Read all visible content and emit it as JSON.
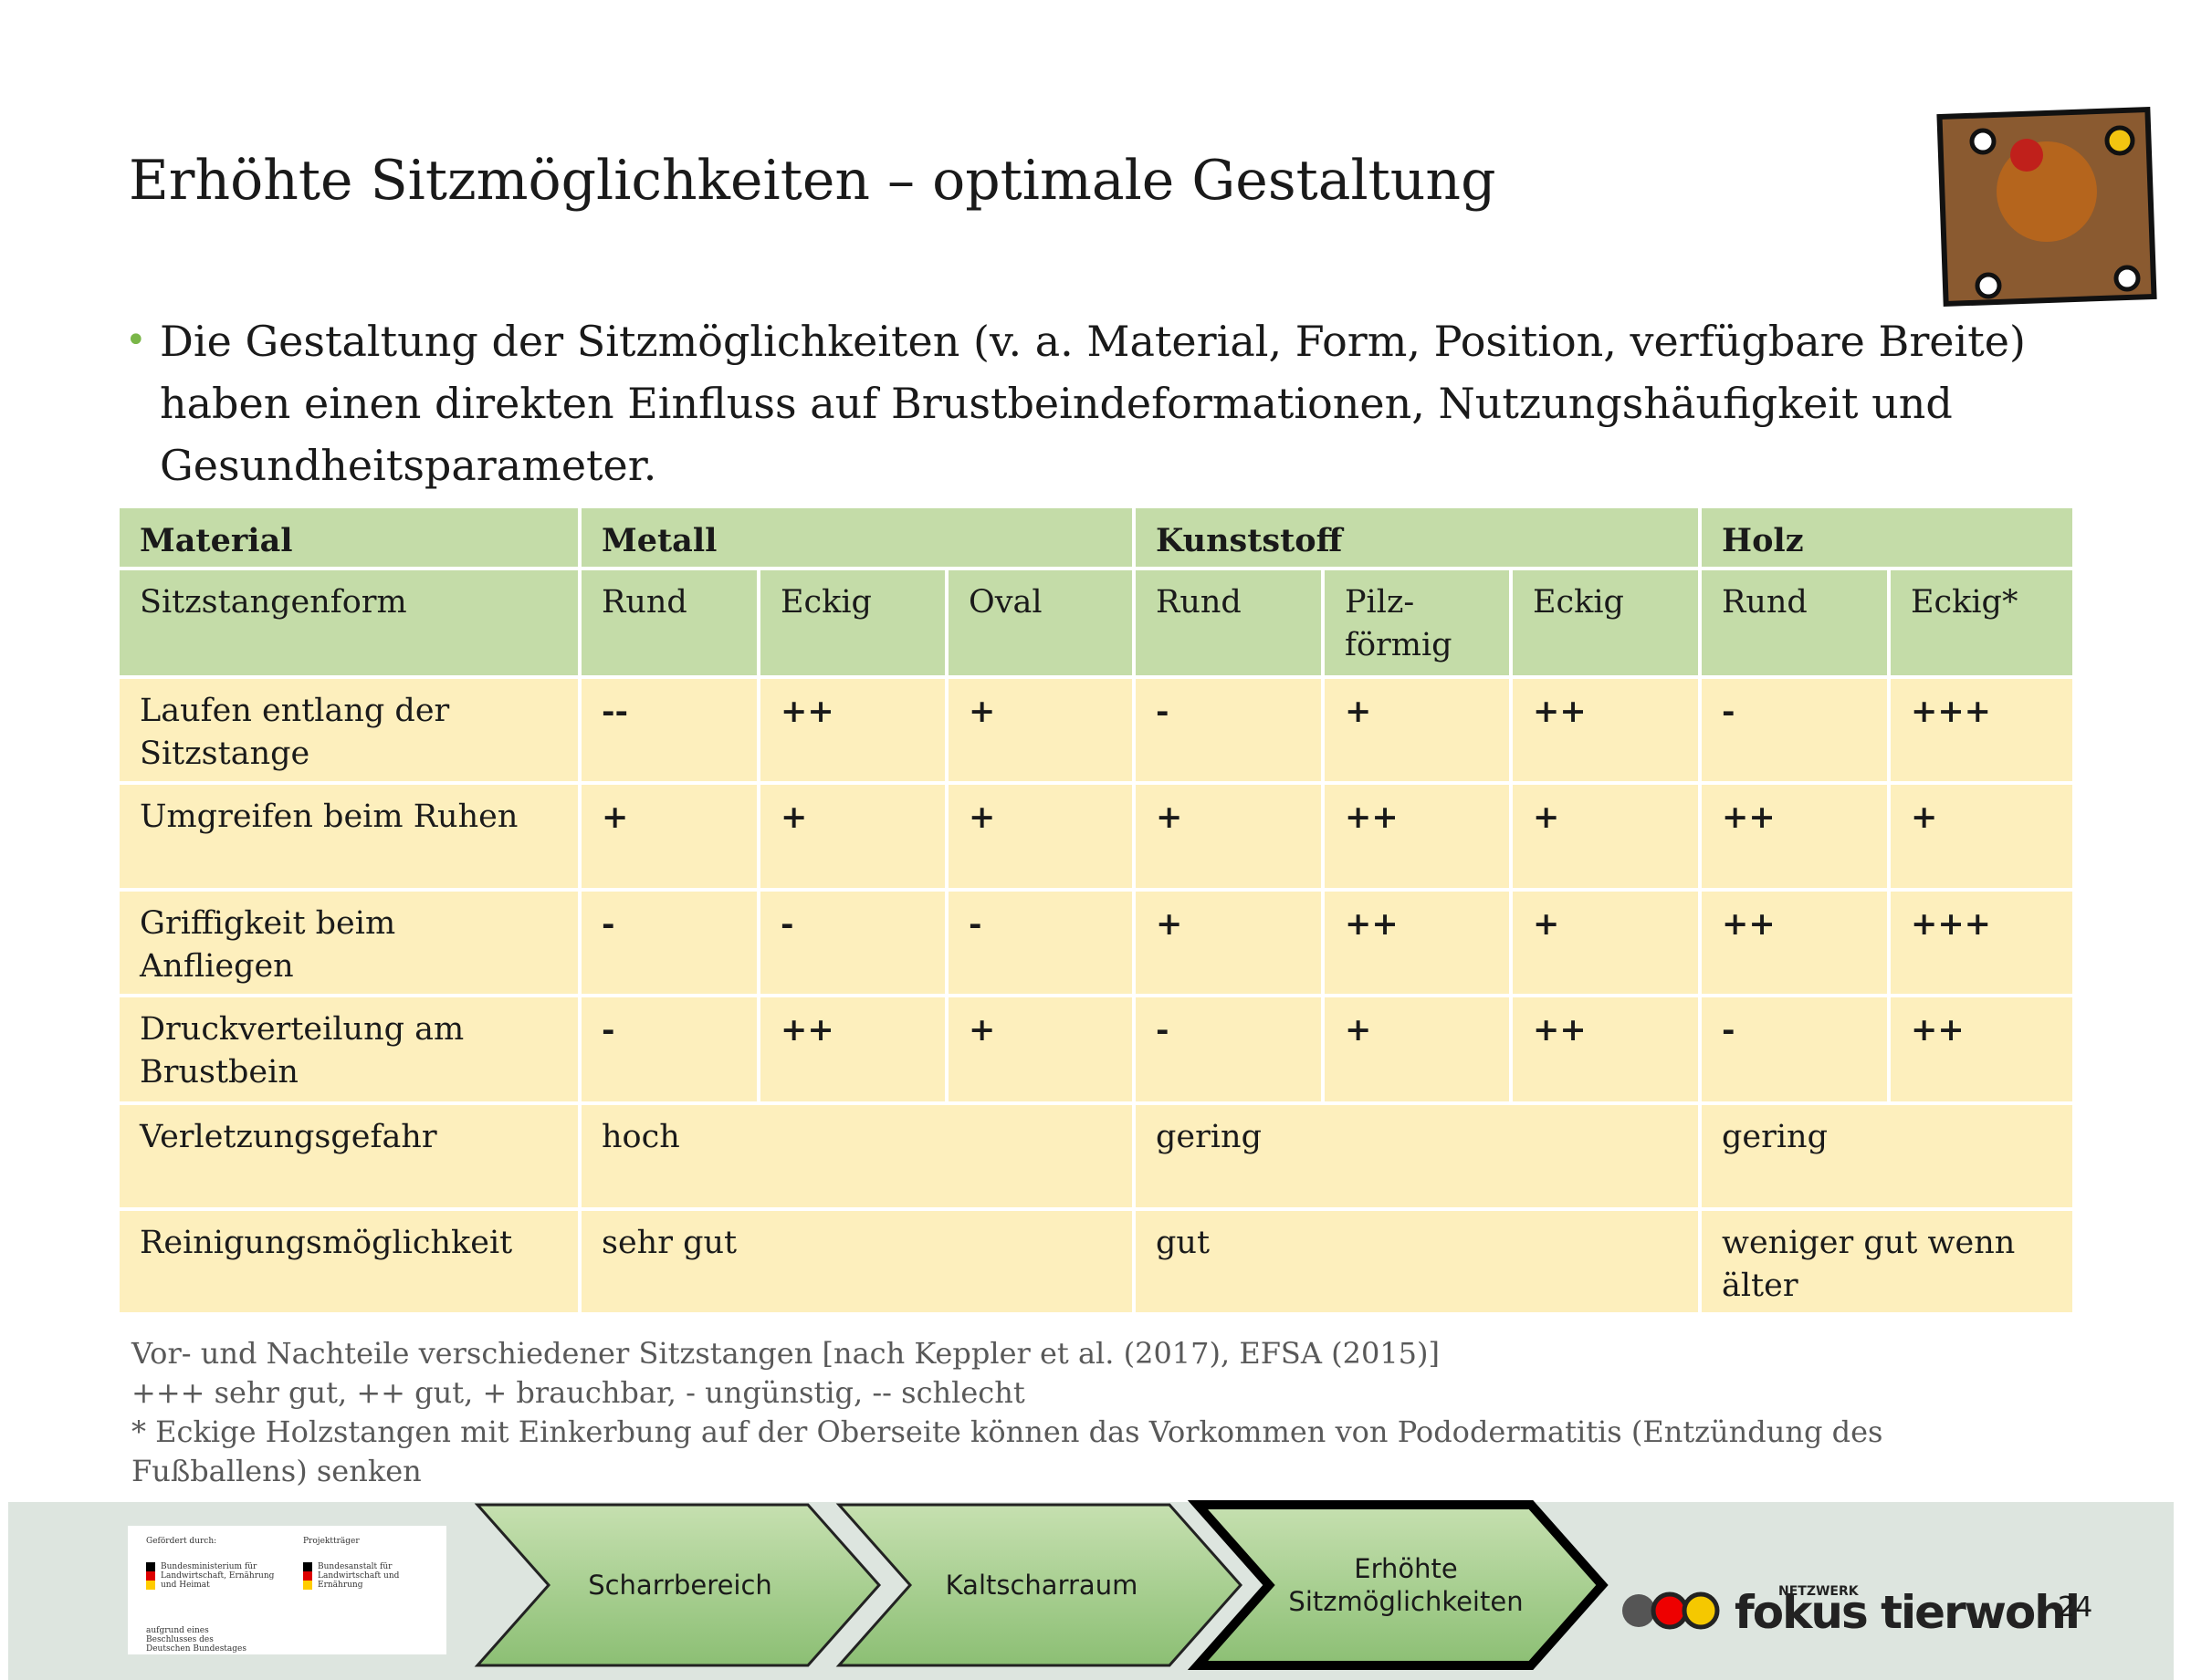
{
  "header": {
    "title": "Erhöhte Sitzmöglichkeiten – optimale Gestaltung"
  },
  "bullet": "Die Gestaltung der Sitzmöglichkeiten (v. a. Material, Form, Position, verfügbare Breite) haben einen direkten Einfluss auf Brustbeindeformationen, Nutzungshäufigkeit und Gesundheitsparameter.",
  "table": {
    "material_row": [
      "Material",
      "Metall",
      "Kunststoff",
      "Holz"
    ],
    "form_row": [
      "Sitzstangenform",
      "Rund",
      "Eckig",
      "Oval",
      "Rund",
      "Pilz-\nförmig",
      "Eckig",
      "Rund",
      "Eckig*"
    ],
    "rating_rows": [
      [
        "Laufen entlang der Sitzstange",
        "--",
        "++",
        "+",
        "-",
        "+",
        "++",
        "-",
        "+++"
      ],
      [
        "Umgreifen beim Ruhen",
        "+",
        "+",
        "+",
        "+",
        "++",
        "+",
        "++",
        "+"
      ],
      [
        "Griffigkeit beim Anfliegen",
        "-",
        "-",
        "-",
        "+",
        "++",
        "+",
        "++",
        "+++"
      ],
      [
        "Druckverteilung am Brustbein",
        "-",
        "++",
        "+",
        "-",
        "+",
        "++",
        "-",
        "++"
      ]
    ],
    "group_rows": [
      [
        "Verletzungsgefahr",
        "hoch",
        "gering",
        "gering"
      ],
      [
        "Reinigungsmöglichkeit",
        "sehr gut",
        "gut",
        "weniger gut wenn älter"
      ]
    ]
  },
  "caption": [
    "Vor- und Nachteile verschiedener Sitzstangen [nach Keppler et al. (2017), EFSA (2015)]",
    "+++ sehr gut, ++ gut, + brauchbar, - ungünstig, -- schlecht",
    "* Eckige Holzstangen mit Einkerbung auf der Oberseite können das Vorkommen von Pododermatitis (Entzündung des",
    "Fußballens) senken"
  ],
  "footer": {
    "funding": {
      "label_left": "Gefördert durch:",
      "label_right": "Projektträger",
      "ministry": "Bundesministerium für Landwirtschaft, Ernährung und Heimat",
      "agency": "Bundesanstalt für Landwirtschaft und Ernährung",
      "note": "aufgrund eines Beschlusses des Deutschen Bundestages"
    },
    "steps": [
      "Scharrbereich",
      "Kaltscharraum",
      "Erhöhte Sitzmöglichkeiten"
    ],
    "logo_small": "NETZWERK",
    "logo": "fokus tierwohl",
    "page": "24"
  }
}
